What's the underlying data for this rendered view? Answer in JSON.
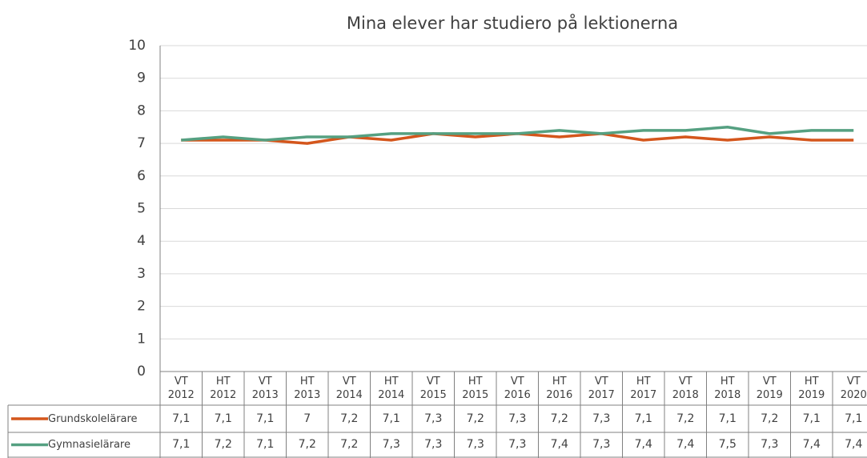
{
  "chart_data": {
    "type": "line",
    "title": "Mina elever har studiero på lektionerna",
    "categories": [
      "VT 2012",
      "HT 2012",
      "VT 2013",
      "HT 2013",
      "VT 2014",
      "HT 2014",
      "VT 2015",
      "HT 2015",
      "VT 2016",
      "HT 2016",
      "VT 2017",
      "HT 2017",
      "VT 2018",
      "HT 2018",
      "VT 2019",
      "HT 2019",
      "VT 2020"
    ],
    "series": [
      {
        "name": "Grundskolelärare",
        "color": "#d4561c",
        "values": [
          7.1,
          7.1,
          7.1,
          7,
          7.2,
          7.1,
          7.3,
          7.2,
          7.3,
          7.2,
          7.3,
          7.1,
          7.2,
          7.1,
          7.2,
          7.1,
          7.1
        ],
        "value_labels": [
          "7,1",
          "7,1",
          "7,1",
          "7",
          "7,2",
          "7,1",
          "7,3",
          "7,2",
          "7,3",
          "7,2",
          "7,3",
          "7,1",
          "7,2",
          "7,1",
          "7,2",
          "7,1",
          "7,1"
        ]
      },
      {
        "name": "Gymnasielärare",
        "color": "#55a081",
        "values": [
          7.1,
          7.2,
          7.1,
          7.2,
          7.2,
          7.3,
          7.3,
          7.3,
          7.3,
          7.4,
          7.3,
          7.4,
          7.4,
          7.5,
          7.3,
          7.4,
          7.4
        ],
        "value_labels": [
          "7,1",
          "7,2",
          "7,1",
          "7,2",
          "7,2",
          "7,3",
          "7,3",
          "7,3",
          "7,3",
          "7,4",
          "7,3",
          "7,4",
          "7,4",
          "7,5",
          "7,3",
          "7,4",
          "7,4"
        ]
      }
    ],
    "ylim": [
      0,
      10
    ],
    "yticks": [
      0,
      1,
      2,
      3,
      4,
      5,
      6,
      7,
      8,
      9,
      10
    ],
    "grid": true
  }
}
